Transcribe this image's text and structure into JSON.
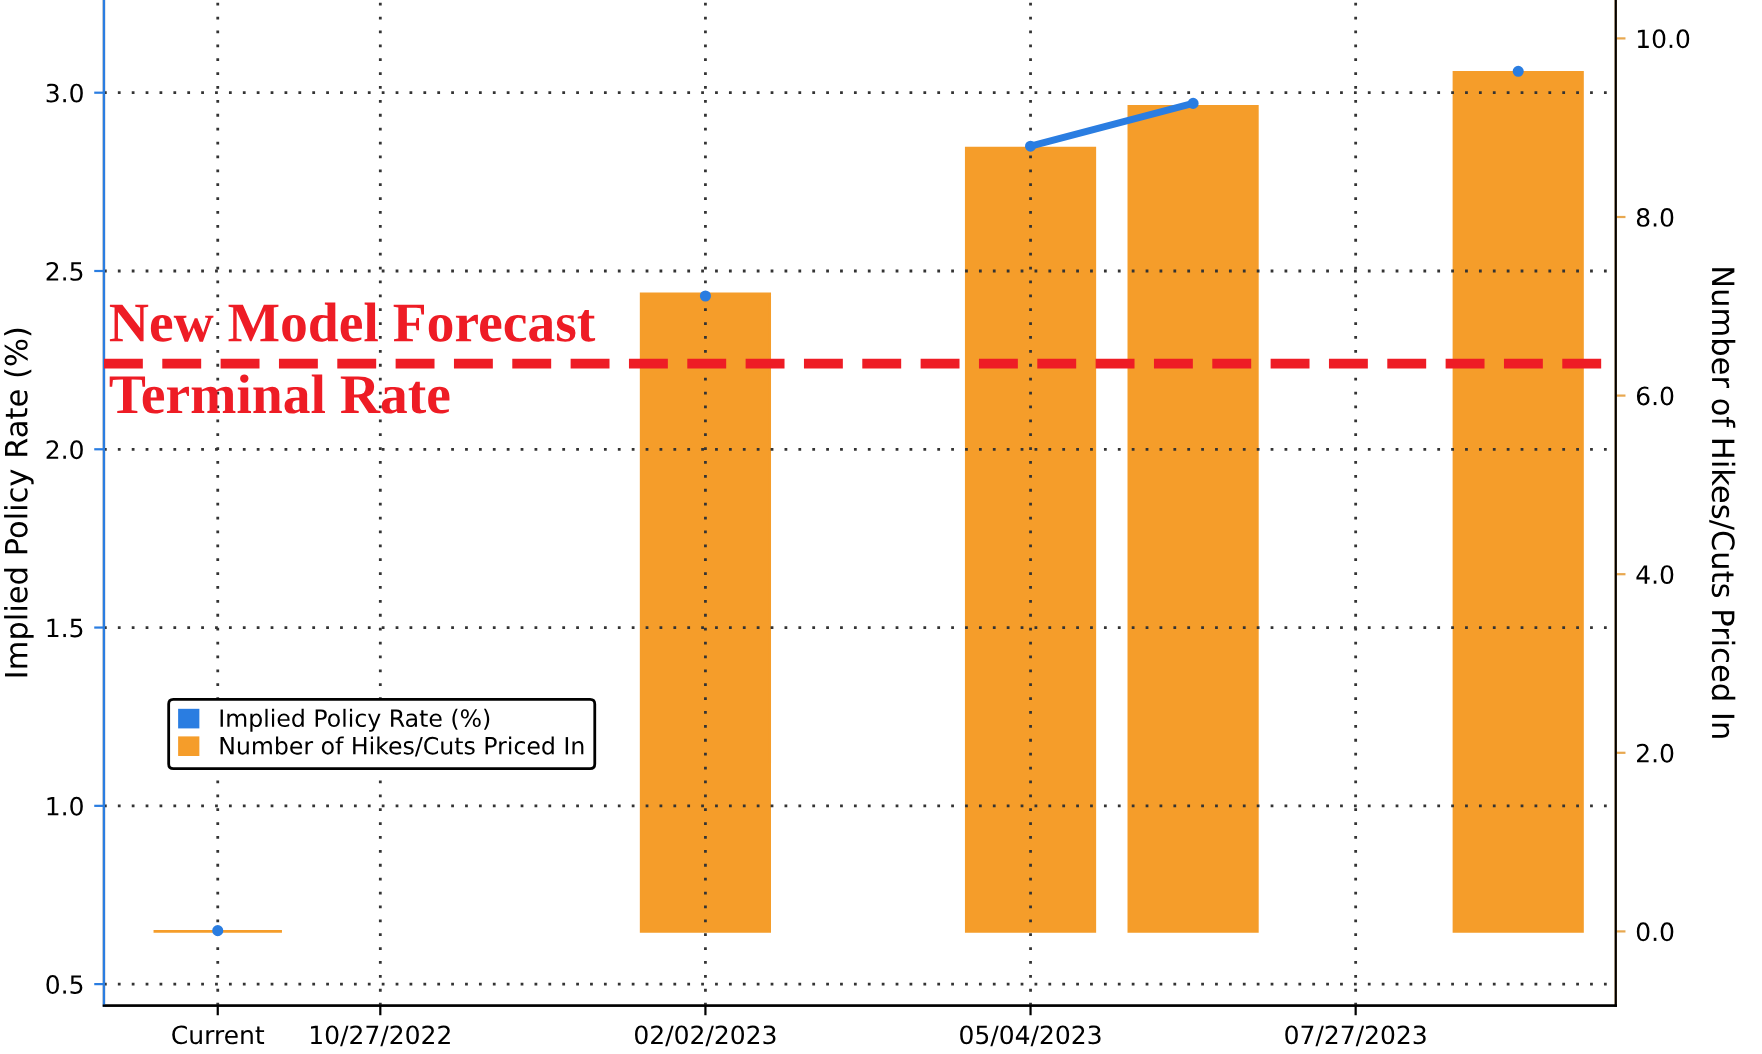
{
  "chart_data": {
    "type": "bar",
    "ylabel": "Implied Policy Rate (%)",
    "y2label": "Number of Hikes/Cuts Priced In",
    "categories": [
      "Current",
      "10/27/2022",
      null,
      "02/02/2023",
      null,
      "05/04/2023",
      null,
      "07/27/2023",
      null
    ],
    "series": [
      {
        "name": "Implied Policy Rate (%)",
        "type": "line",
        "color": "#2a7de1",
        "axis": "y",
        "marker": "circle",
        "values": [
          0.65,
          null,
          null,
          2.43,
          null,
          2.85,
          2.97,
          null,
          3.06
        ]
      },
      {
        "name": "Number of Hikes/Cuts Priced In",
        "color": "#f59d2a",
        "axis": "y2",
        "values": [
          0.0,
          null,
          null,
          7.14,
          null,
          8.77,
          9.24,
          null,
          9.62
        ]
      }
    ],
    "ylim": [
      0.44,
      3.26
    ],
    "yticks": [
      {
        "value": 0.5,
        "label": "0.5"
      },
      {
        "value": 1.0,
        "label": "1.0"
      },
      {
        "value": 1.5,
        "label": "1.5"
      },
      {
        "value": 2.0,
        "label": "2.0"
      },
      {
        "value": 2.5,
        "label": "2.5"
      },
      {
        "value": 3.0,
        "label": "3.0"
      }
    ],
    "y2lim": [
      -0.83,
      10.43
    ],
    "y2ticks": [
      {
        "value": 0,
        "label": "0.0"
      },
      {
        "value": 2,
        "label": "2.0"
      },
      {
        "value": 4,
        "label": "4.0"
      },
      {
        "value": 6,
        "label": "6.0"
      },
      {
        "value": 8,
        "label": "8.0"
      },
      {
        "value": 10,
        "label": "10.0"
      }
    ],
    "ref_lines": [
      {
        "axis": "y",
        "value": 2.24,
        "label": "New Model Forecast\nTerminal Rate",
        "color": "#ee1c25",
        "line_style": "dashed"
      }
    ],
    "grid": true,
    "legend": "left"
  }
}
